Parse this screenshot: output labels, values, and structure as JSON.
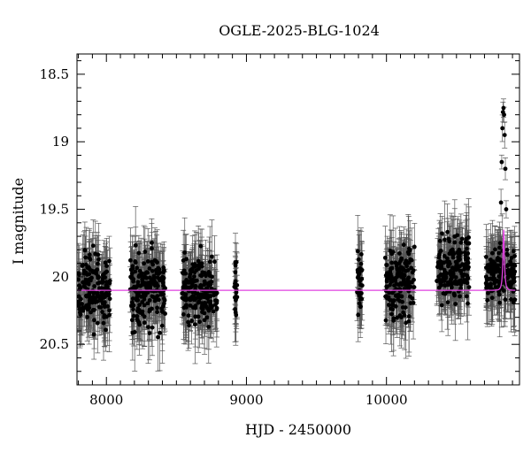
{
  "chart_data": {
    "type": "scatter",
    "title": "OGLE-2025-BLG-1024",
    "xlabel": "HJD - 2450000",
    "ylabel": "I magnitude",
    "xlim": [
      7790,
      10950
    ],
    "ylim": [
      20.8,
      18.35
    ],
    "y_inverted": true,
    "x_ticks": [
      8000,
      9000,
      10000
    ],
    "y_ticks": [
      18.5,
      19,
      19.5,
      20,
      20.5
    ],
    "y_tick_labels": [
      "18.5",
      "19",
      "19.5",
      "20",
      "20.5"
    ],
    "grid": false,
    "baseline_mag": 20.1,
    "colors": {
      "points": "#000000",
      "error_bars": "#555555",
      "model": "#e040e0"
    },
    "model": {
      "name": "",
      "t0": 10837,
      "tE": 14,
      "u0": 0.29,
      "baseline": 20.1
    },
    "observing_seasons": [
      {
        "start": 7800,
        "end": 8030,
        "mean_mag": 20.1,
        "scatter": 0.2
      },
      {
        "start": 8170,
        "end": 8420,
        "mean_mag": 20.1,
        "scatter": 0.2
      },
      {
        "start": 8540,
        "end": 8790,
        "mean_mag": 20.1,
        "scatter": 0.2
      },
      {
        "start": 8910,
        "end": 8935,
        "mean_mag": 20.1,
        "scatter": 0.2
      },
      {
        "start": 9790,
        "end": 9830,
        "mean_mag": 20.05,
        "scatter": 0.2
      },
      {
        "start": 9990,
        "end": 10200,
        "mean_mag": 20.05,
        "scatter": 0.2
      },
      {
        "start": 10360,
        "end": 10590,
        "mean_mag": 19.95,
        "scatter": 0.2
      },
      {
        "start": 10710,
        "end": 10920,
        "mean_mag": 20.0,
        "scatter": 0.15
      }
    ],
    "peak_points": [
      {
        "x": 10812,
        "y": 19.75
      },
      {
        "x": 10818,
        "y": 19.45
      },
      {
        "x": 10823,
        "y": 19.15
      },
      {
        "x": 10828,
        "y": 18.9
      },
      {
        "x": 10832,
        "y": 18.78
      },
      {
        "x": 10836,
        "y": 18.75
      },
      {
        "x": 10840,
        "y": 18.8
      },
      {
        "x": 10844,
        "y": 18.95
      },
      {
        "x": 10849,
        "y": 19.2
      },
      {
        "x": 10855,
        "y": 19.5
      },
      {
        "x": 10862,
        "y": 19.8
      },
      {
        "x": 10870,
        "y": 20.0
      }
    ]
  }
}
